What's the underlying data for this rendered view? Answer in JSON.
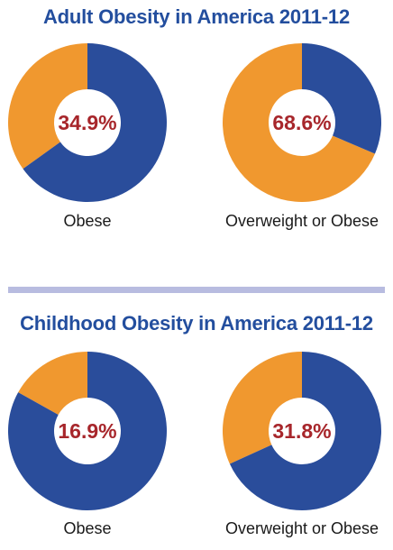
{
  "colors": {
    "primary": "#2a4d9b",
    "secondary": "#f0982f",
    "percent_text": "#a7262b",
    "title_text": "#234e9e",
    "divider": "#b8bce0"
  },
  "chart_data": [
    {
      "type": "pie",
      "title": "Adult Obesity in America 2011-12",
      "label": "Obese",
      "percent_label": "34.9%",
      "values": [
        34.9,
        65.1
      ],
      "highlighted_color": "secondary"
    },
    {
      "type": "pie",
      "title": "Adult Obesity in America 2011-12",
      "label": "Overweight or Obese",
      "percent_label": "68.6%",
      "values": [
        68.6,
        31.4
      ],
      "highlighted_color": "secondary"
    },
    {
      "type": "pie",
      "title": "Childhood Obesity in America 2011-12",
      "label": "Obese",
      "percent_label": "16.9%",
      "values": [
        16.9,
        83.1
      ],
      "highlighted_color": "secondary"
    },
    {
      "type": "pie",
      "title": "Childhood Obesity in America 2011-12",
      "label": "Overweight or Obese",
      "percent_label": "31.8%",
      "values": [
        31.8,
        68.2
      ],
      "highlighted_color": "secondary"
    }
  ],
  "sections": [
    {
      "title": "Adult Obesity in America 2011-12"
    },
    {
      "title": "Childhood Obesity in America 2011-12"
    }
  ]
}
